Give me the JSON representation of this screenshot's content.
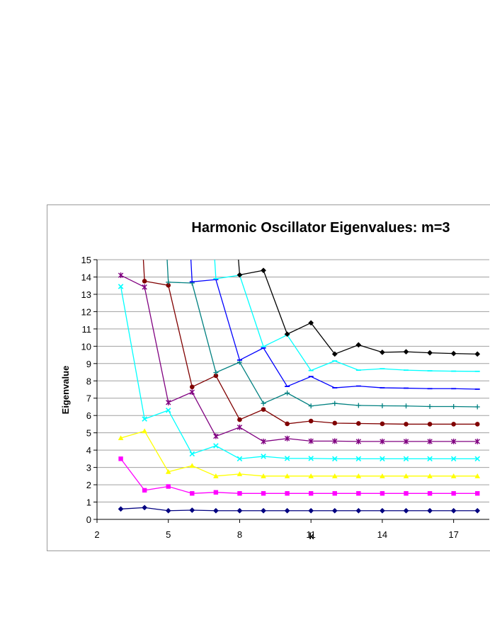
{
  "chart_data": {
    "type": "line",
    "title": "Harmonic Oscillator Eigenvalues:  m=3",
    "xlabel": "k",
    "ylabel": "Eigenvalue",
    "xlim": [
      2,
      18.5
    ],
    "ylim": [
      0,
      15
    ],
    "xticks": [
      2,
      5,
      8,
      11,
      14,
      17
    ],
    "yticks": [
      0,
      1,
      2,
      3,
      4,
      5,
      6,
      7,
      8,
      9,
      10,
      11,
      12,
      13,
      14,
      15
    ],
    "grid": "horizontal",
    "legend": "none",
    "series": [
      {
        "color": "#000080",
        "marker": "diamond",
        "x": [
          3,
          4,
          5,
          6,
          7,
          8,
          9,
          10,
          11,
          12,
          13,
          14,
          15,
          16,
          17,
          18
        ],
        "y": [
          0.6,
          0.68,
          0.5,
          0.53,
          0.5,
          0.5,
          0.5,
          0.5,
          0.5,
          0.5,
          0.5,
          0.5,
          0.5,
          0.5,
          0.5,
          0.5
        ]
      },
      {
        "color": "#ff00ff",
        "marker": "square",
        "x": [
          3,
          4,
          5,
          6,
          7,
          8,
          9,
          10,
          11,
          12,
          13,
          14,
          15,
          16,
          17,
          18
        ],
        "y": [
          3.5,
          1.68,
          1.9,
          1.5,
          1.56,
          1.5,
          1.5,
          1.5,
          1.5,
          1.5,
          1.5,
          1.5,
          1.5,
          1.5,
          1.5,
          1.5
        ]
      },
      {
        "color": "#ffff00",
        "marker": "triangle",
        "x": [
          3,
          4,
          5,
          6,
          7,
          8,
          9,
          10,
          11,
          12,
          13,
          14,
          15,
          16,
          17,
          18
        ],
        "y": [
          4.7,
          5.1,
          2.75,
          3.1,
          2.5,
          2.62,
          2.5,
          2.5,
          2.5,
          2.5,
          2.5,
          2.5,
          2.5,
          2.5,
          2.5,
          2.5
        ]
      },
      {
        "color": "#00ffff",
        "marker": "x",
        "x": [
          3,
          4,
          5,
          6,
          7,
          8,
          9,
          10,
          11,
          12,
          13,
          14,
          15,
          16,
          17,
          18
        ],
        "y": [
          13.45,
          5.8,
          6.3,
          3.78,
          4.25,
          3.5,
          3.64,
          3.52,
          3.52,
          3.5,
          3.5,
          3.5,
          3.5,
          3.5,
          3.5,
          3.5
        ]
      },
      {
        "color": "#800080",
        "marker": "star",
        "x": [
          3,
          4,
          5,
          6,
          7,
          8,
          9,
          10,
          11,
          12,
          13,
          14,
          15,
          16,
          17,
          18
        ],
        "y": [
          14.1,
          13.42,
          6.75,
          7.35,
          4.8,
          5.32,
          4.5,
          4.67,
          4.52,
          4.52,
          4.5,
          4.5,
          4.5,
          4.5,
          4.5,
          4.5
        ]
      },
      {
        "color": "#800000",
        "marker": "circle",
        "x": [
          3.95,
          4,
          5,
          6,
          7,
          8,
          9,
          10,
          11,
          12,
          13,
          14,
          15,
          16,
          17,
          18
        ],
        "y": [
          15,
          13.76,
          13.52,
          7.65,
          8.3,
          5.76,
          6.35,
          5.52,
          5.68,
          5.56,
          5.54,
          5.52,
          5.5,
          5.5,
          5.5,
          5.5
        ]
      },
      {
        "color": "#008080",
        "marker": "plus",
        "x": [
          4.95,
          5,
          6,
          7,
          8,
          9,
          10,
          11,
          12,
          13,
          14,
          15,
          16,
          17,
          18
        ],
        "y": [
          15,
          13.7,
          13.65,
          8.48,
          9.08,
          6.7,
          7.3,
          6.55,
          6.7,
          6.58,
          6.56,
          6.55,
          6.52,
          6.52,
          6.5
        ]
      },
      {
        "color": "#0000ff",
        "marker": "dash",
        "x": [
          5.95,
          6,
          7,
          8,
          9,
          10,
          11,
          12,
          13,
          14,
          15,
          16,
          17,
          18
        ],
        "y": [
          15,
          13.72,
          13.85,
          9.2,
          9.9,
          7.68,
          8.25,
          7.6,
          7.7,
          7.6,
          7.58,
          7.55,
          7.55,
          7.52
        ]
      },
      {
        "color": "#00ffff",
        "marker": "dash",
        "x": [
          6.95,
          7,
          8,
          9,
          10,
          11,
          12,
          13,
          14,
          15,
          16,
          17,
          18
        ],
        "y": [
          15,
          13.9,
          14.1,
          9.98,
          10.65,
          8.6,
          9.15,
          8.62,
          8.7,
          8.62,
          8.58,
          8.56,
          8.55
        ]
      },
      {
        "color": "#000000",
        "marker": "diamond",
        "x": [
          7.95,
          8,
          9,
          10,
          11,
          12,
          13,
          14,
          15,
          16,
          17,
          18
        ],
        "y": [
          15,
          14.12,
          14.38,
          10.7,
          11.35,
          9.55,
          10.08,
          9.65,
          9.68,
          9.62,
          9.58,
          9.55
        ]
      }
    ]
  }
}
